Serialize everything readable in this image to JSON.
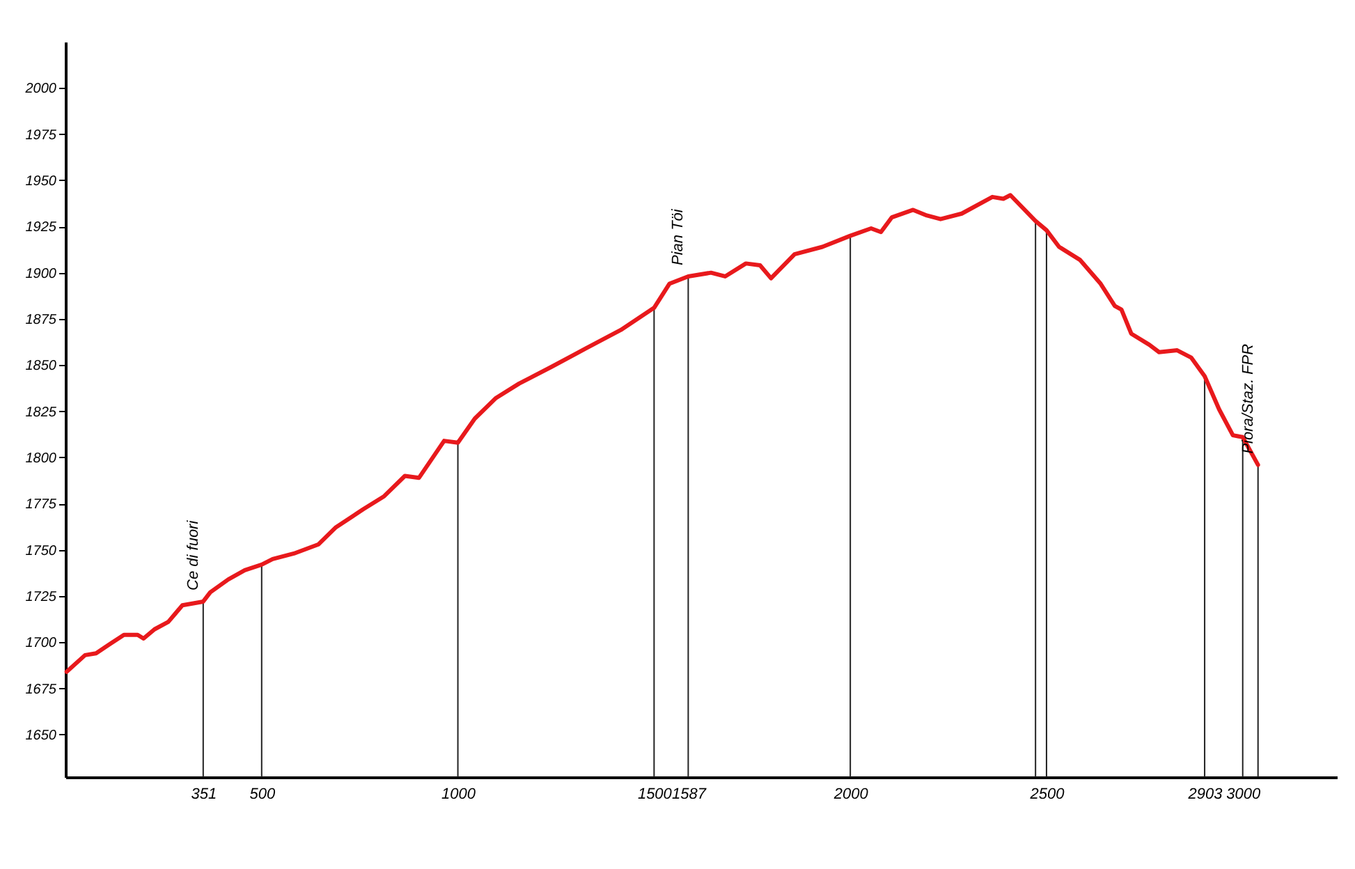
{
  "chart_data": {
    "type": "line",
    "x": [
      3,
      50,
      78,
      113,
      149,
      184,
      199,
      227,
      262,
      298,
      351,
      369,
      415,
      457,
      500,
      528,
      582,
      645,
      688,
      759,
      812,
      865,
      901,
      965,
      1000,
      1043,
      1096,
      1156,
      1238,
      1326,
      1415,
      1500,
      1539,
      1587,
      1645,
      1681,
      1734,
      1770,
      1798,
      1858,
      1929,
      2000,
      2053,
      2078,
      2106,
      2160,
      2195,
      2230,
      2284,
      2362,
      2390,
      2408,
      2472,
      2500,
      2532,
      2585,
      2638,
      2674,
      2691,
      2716,
      2762,
      2787,
      2833,
      2869,
      2903,
      2940,
      2975,
      3000,
      3039
    ],
    "series": [
      {
        "color": "#e8191c",
        "values": [
          1684,
          1693,
          1694,
          1699,
          1704,
          1704,
          1702,
          1707,
          1711,
          1720,
          1722,
          1727,
          1734,
          1739,
          1742,
          1745,
          1748,
          1753,
          1762,
          1772,
          1779,
          1790,
          1789,
          1809,
          1808,
          1821,
          1832,
          1840,
          1849,
          1859,
          1869,
          1881,
          1894,
          1898,
          1900,
          1898,
          1905,
          1904,
          1897,
          1910,
          1914,
          1920,
          1924,
          1922,
          1930,
          1934,
          1931,
          1929,
          1932,
          1941,
          1940,
          1942,
          1928,
          1923,
          1914,
          1907,
          1894,
          1882,
          1880,
          1867,
          1861,
          1857,
          1858,
          1854,
          1844,
          1826,
          1812,
          1811,
          1796
        ]
      },
      {
        "type": "bar",
        "color": "#222222",
        "x": [
          351,
          500,
          1000,
          1500,
          1587,
          2000,
          2472,
          2500,
          2903,
          3000,
          3039
        ],
        "values": [
          1722,
          1742,
          1808,
          1881,
          1898,
          1920,
          1928,
          1923,
          1844,
          1811,
          1796
        ]
      }
    ],
    "xlim": [
      0,
      3240
    ],
    "ylim": [
      1627,
      2025
    ],
    "xticks": [
      351,
      500,
      1000,
      1500,
      1587,
      2000,
      2500,
      2903,
      3000
    ],
    "yticks": [
      1650,
      1675,
      1700,
      1725,
      1750,
      1775,
      1800,
      1825,
      1850,
      1875,
      1900,
      1925,
      1950,
      1975,
      2000
    ],
    "annotations": [
      {
        "text": "Ce di fuori",
        "x": 351,
        "y": 1722
      },
      {
        "text": "Pian Töi",
        "x": 1587,
        "y": 1898
      },
      {
        "text": "Piora/Staz. FPR",
        "x": 3039,
        "y": 1796
      }
    ],
    "grid": false,
    "marker": "none",
    "line_style": "solid"
  }
}
